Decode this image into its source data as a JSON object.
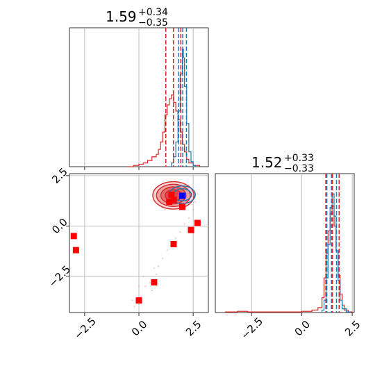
{
  "chart_data": [
    {
      "type": "histogram",
      "panel": "top-left marginal (parameter 1)",
      "title": {
        "value": "1.59",
        "plus": "+0.34",
        "minus": "−0.35"
      },
      "xlim": [
        -3.2,
        3.2
      ],
      "grid": true,
      "xticks": [
        -2.5,
        0.0,
        2.5
      ],
      "series": [
        {
          "color": "#d62728",
          "bins": [
            [
              -0.5,
              0
            ],
            [
              -0.25,
              0.01
            ],
            [
              0,
              0.02
            ],
            [
              0.2,
              0.03
            ],
            [
              0.4,
              0.05
            ],
            [
              0.6,
              0.08
            ],
            [
              0.8,
              0.1
            ],
            [
              0.9,
              0.14
            ],
            [
              1.0,
              0.2
            ],
            [
              1.1,
              0.28
            ],
            [
              1.2,
              0.42
            ],
            [
              1.3,
              0.5
            ],
            [
              1.4,
              0.55
            ],
            [
              1.5,
              0.58
            ],
            [
              1.6,
              0.52
            ],
            [
              1.7,
              0.45
            ],
            [
              1.8,
              0.38
            ],
            [
              1.9,
              0.28
            ],
            [
              2.0,
              0.18
            ],
            [
              2.1,
              0.12
            ],
            [
              2.2,
              0.06
            ],
            [
              2.3,
              0.03
            ],
            [
              2.5,
              0.01
            ],
            [
              2.8,
              0
            ]
          ]
        },
        {
          "color": "#1f77b4",
          "bins": [
            [
              1.4,
              0
            ],
            [
              1.5,
              0.03
            ],
            [
              1.6,
              0.08
            ],
            [
              1.7,
              0.2
            ],
            [
              1.8,
              0.45
            ],
            [
              1.9,
              0.75
            ],
            [
              2.0,
              0.95
            ],
            [
              2.05,
              0.88
            ],
            [
              2.1,
              0.65
            ],
            [
              2.2,
              0.35
            ],
            [
              2.3,
              0.12
            ],
            [
              2.4,
              0.04
            ],
            [
              2.5,
              0.01
            ],
            [
              2.6,
              0
            ]
          ]
        }
      ],
      "quantile_lines": [
        {
          "color": "#d62728",
          "x": [
            1.24,
            1.59,
            1.93
          ]
        },
        {
          "color": "#1f77b4",
          "x": [
            1.83,
            2.02,
            2.19
          ]
        }
      ]
    },
    {
      "type": "scatter",
      "panel": "bottom-left joint (parameter 1 vs parameter 2)",
      "xlim": [
        -3.2,
        3.2
      ],
      "ylim": [
        -4.3,
        2.6
      ],
      "grid": true,
      "xticks": [
        -2.5,
        0.0,
        2.5
      ],
      "yticks": [
        -2.5,
        0.0,
        2.5
      ],
      "contours": [
        {
          "color": "#d62728",
          "center": [
            1.59,
            1.52
          ],
          "radii": [
            [
              0.95,
              0.68
            ],
            [
              0.78,
              0.55
            ],
            [
              0.58,
              0.42
            ],
            [
              0.38,
              0.28
            ]
          ]
        },
        {
          "color": "#1f77b4",
          "center": [
            2.0,
            1.55
          ],
          "radii": [
            [
              0.6,
              0.44
            ],
            [
              0.42,
              0.3
            ]
          ]
        }
      ],
      "faint_samples": [
        [
          -0.3,
          -3.7
        ],
        [
          -0.2,
          -4.0
        ],
        [
          0.1,
          -3.5
        ],
        [
          0.3,
          -3.0
        ],
        [
          0.5,
          -2.8
        ],
        [
          0.6,
          -3.2
        ],
        [
          0.8,
          -2.4
        ],
        [
          0.9,
          -2.0
        ],
        [
          1.1,
          -1.6
        ],
        [
          1.3,
          -1.2
        ],
        [
          1.5,
          -0.9
        ],
        [
          1.7,
          -0.6
        ],
        [
          1.9,
          -0.3
        ],
        [
          2.1,
          0.1
        ],
        [
          2.3,
          0.4
        ],
        [
          2.5,
          0.8
        ],
        [
          0.2,
          -2.5
        ],
        [
          0.0,
          -3.0
        ],
        [
          0.7,
          -2.1
        ],
        [
          2.6,
          1.2
        ],
        [
          1.2,
          0.8
        ],
        [
          2.7,
          1.6
        ]
      ],
      "red_points": [
        [
          -3.0,
          -0.5
        ],
        [
          -2.9,
          -1.2
        ],
        [
          0.0,
          -3.7
        ],
        [
          0.7,
          -2.8
        ],
        [
          1.6,
          -0.9
        ],
        [
          2.4,
          -0.2
        ],
        [
          2.7,
          0.15
        ],
        [
          2.0,
          0.95
        ],
        [
          1.4,
          1.2
        ],
        [
          1.6,
          1.3
        ],
        [
          1.5,
          1.55
        ]
      ],
      "blue_points": [
        [
          2.0,
          1.5
        ]
      ]
    },
    {
      "type": "histogram",
      "panel": "bottom-right marginal (parameter 2)",
      "title": {
        "value": "1.52",
        "plus": "+0.33",
        "minus": "−0.33"
      },
      "xlim": [
        -4.3,
        2.6
      ],
      "grid": true,
      "xticks": [
        -2.5,
        0.0,
        2.5
      ],
      "series": [
        {
          "color": "#d62728",
          "bins": [
            [
              -3.8,
              0.005
            ],
            [
              -3.2,
              0.01
            ],
            [
              -2.7,
              0.005
            ],
            [
              -2.0,
              0.005
            ],
            [
              -1.0,
              0.005
            ],
            [
              0.0,
              0.01
            ],
            [
              0.5,
              0.02
            ],
            [
              0.8,
              0.04
            ],
            [
              1.0,
              0.12
            ],
            [
              1.1,
              0.28
            ],
            [
              1.2,
              0.48
            ],
            [
              1.3,
              0.66
            ],
            [
              1.4,
              0.8
            ],
            [
              1.5,
              0.86
            ],
            [
              1.6,
              0.7
            ],
            [
              1.7,
              0.5
            ],
            [
              1.8,
              0.3
            ],
            [
              1.9,
              0.15
            ],
            [
              2.0,
              0.06
            ],
            [
              2.1,
              0.02
            ],
            [
              2.3,
              0.005
            ],
            [
              2.5,
              0
            ]
          ]
        },
        {
          "color": "#1f77b4",
          "bins": [
            [
              1.0,
              0.02
            ],
            [
              1.1,
              0.1
            ],
            [
              1.2,
              0.28
            ],
            [
              1.3,
              0.55
            ],
            [
              1.4,
              0.85
            ],
            [
              1.5,
              0.96
            ],
            [
              1.6,
              0.78
            ],
            [
              1.7,
              0.5
            ],
            [
              1.8,
              0.26
            ],
            [
              1.9,
              0.1
            ],
            [
              2.0,
              0.03
            ],
            [
              2.2,
              0.005
            ],
            [
              2.4,
              0
            ]
          ]
        }
      ],
      "quantile_lines": [
        {
          "color": "#d62728",
          "x": [
            1.19,
            1.52,
            1.85
          ]
        },
        {
          "color": "#1f77b4",
          "x": [
            1.24,
            1.47,
            1.72
          ]
        }
      ]
    }
  ]
}
